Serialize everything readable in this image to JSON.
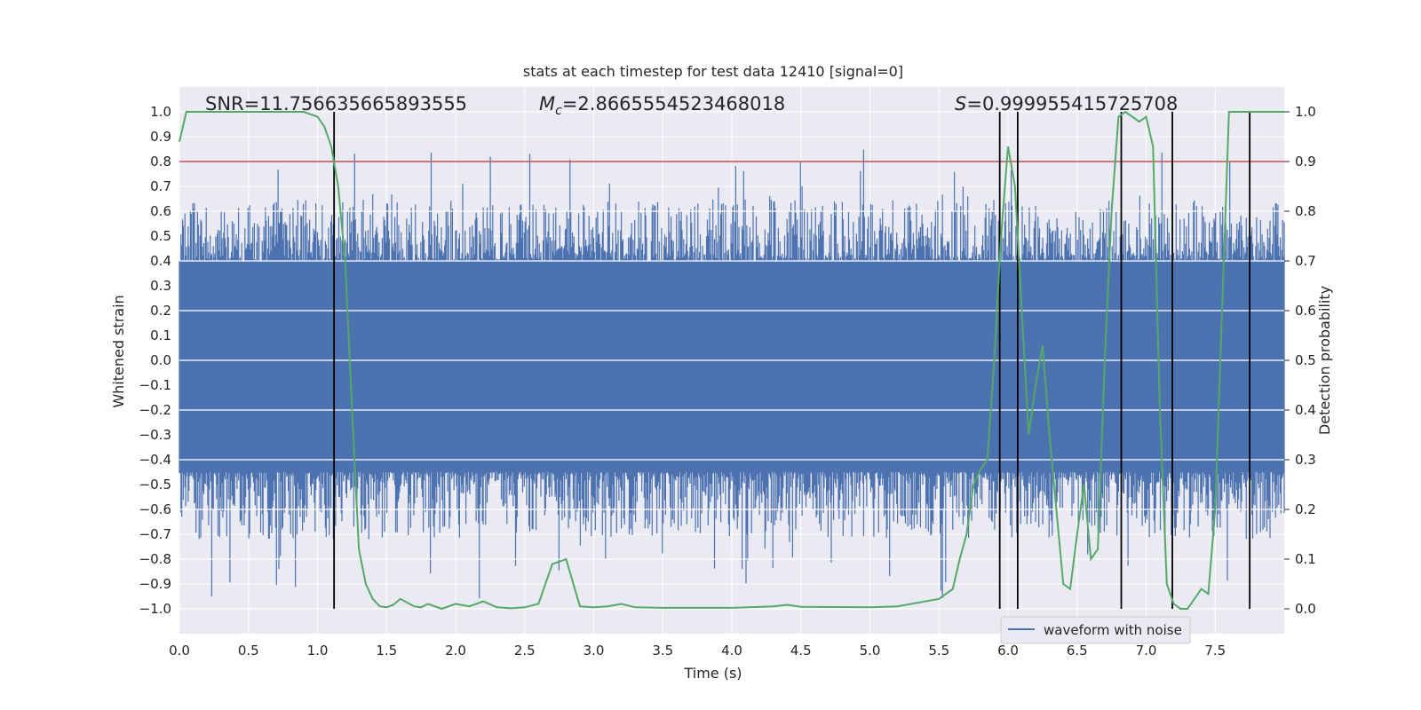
{
  "chart_data": {
    "type": "line",
    "title": "stats at each timestep for test data 12410 [signal=0]",
    "xlabel": "Time (s)",
    "ylabel": "Whitened strain",
    "ylabel_right": "Detection probability",
    "xlim": [
      0.0,
      8.0
    ],
    "ylim": [
      -1.1,
      1.1
    ],
    "ylim_right": [
      -0.05,
      1.05
    ],
    "x_ticks": [
      "0.0",
      "0.5",
      "1.0",
      "1.5",
      "2.0",
      "2.5",
      "3.0",
      "3.5",
      "4.0",
      "4.5",
      "5.0",
      "5.5",
      "6.0",
      "6.5",
      "7.0",
      "7.5"
    ],
    "y_ticks": [
      "1.0",
      "0.9",
      "0.8",
      "0.7",
      "0.6",
      "0.5",
      "0.4",
      "0.3",
      "0.2",
      "0.1",
      "0.0",
      "-0.1",
      "-0.2",
      "-0.3",
      "-0.4",
      "-0.5",
      "-0.6",
      "-0.7",
      "-0.8",
      "-0.9",
      "-1.0"
    ],
    "y_ticks_right": [
      "1.0",
      "0.9",
      "0.8",
      "0.7",
      "0.6",
      "0.5",
      "0.4",
      "0.3",
      "0.2",
      "0.1",
      "0.0"
    ],
    "annotations": {
      "snr": "SNR=11.756635665893555",
      "mc_symbol": "M",
      "mc_sub": "c",
      "mc_value": "=2.8665554523468018",
      "s_symbol": "S",
      "s_value": "=0.999955415725708"
    },
    "legend": {
      "label": "waveform with noise",
      "position": "lower-right"
    },
    "series": [
      {
        "name": "waveform with noise",
        "axis": "left",
        "color": "#4c72b0",
        "style": "dense noise, core amplitude ~0.4, spikes to ~0.85",
        "x_range": [
          0.0,
          8.0
        ],
        "core_amplitude": 0.4,
        "max_spike": 0.85
      },
      {
        "name": "detection probability",
        "axis": "right",
        "color": "#55a868",
        "x": [
          0.0,
          0.05,
          0.1,
          0.2,
          0.3,
          0.4,
          0.5,
          0.6,
          0.7,
          0.8,
          0.9,
          1.0,
          1.05,
          1.1,
          1.15,
          1.2,
          1.25,
          1.3,
          1.35,
          1.4,
          1.45,
          1.5,
          1.55,
          1.6,
          1.7,
          1.75,
          1.8,
          1.9,
          2.0,
          2.1,
          2.2,
          2.3,
          2.4,
          2.5,
          2.6,
          2.7,
          2.8,
          2.9,
          3.0,
          3.1,
          3.2,
          3.3,
          3.5,
          4.0,
          4.3,
          4.4,
          4.5,
          5.0,
          5.2,
          5.5,
          5.6,
          5.65,
          5.7,
          5.75,
          5.8,
          5.85,
          5.9,
          5.95,
          6.0,
          6.05,
          6.1,
          6.15,
          6.2,
          6.25,
          6.3,
          6.35,
          6.4,
          6.45,
          6.5,
          6.55,
          6.6,
          6.65,
          6.7,
          6.75,
          6.8,
          6.85,
          6.9,
          6.95,
          7.0,
          7.05,
          7.1,
          7.15,
          7.2,
          7.25,
          7.3,
          7.35,
          7.4,
          7.45,
          7.5,
          7.55,
          7.6,
          7.65,
          7.7,
          7.75,
          7.8,
          7.85,
          7.9,
          7.95,
          8.0
        ],
        "y": [
          0.94,
          1.0,
          1.0,
          1.0,
          1.0,
          1.0,
          1.0,
          1.0,
          1.0,
          1.0,
          1.0,
          0.99,
          0.97,
          0.93,
          0.85,
          0.7,
          0.4,
          0.12,
          0.05,
          0.02,
          0.005,
          0.003,
          0.008,
          0.02,
          0.005,
          0.003,
          0.01,
          0.0,
          0.01,
          0.005,
          0.015,
          0.003,
          0.001,
          0.003,
          0.01,
          0.09,
          0.1,
          0.005,
          0.003,
          0.005,
          0.01,
          0.003,
          0.002,
          0.002,
          0.005,
          0.008,
          0.004,
          0.003,
          0.005,
          0.02,
          0.04,
          0.1,
          0.15,
          0.25,
          0.28,
          0.3,
          0.5,
          0.75,
          0.93,
          0.85,
          0.6,
          0.35,
          0.45,
          0.53,
          0.35,
          0.2,
          0.05,
          0.04,
          0.15,
          0.25,
          0.1,
          0.12,
          0.5,
          0.8,
          0.99,
          1.0,
          0.99,
          0.98,
          0.99,
          0.93,
          0.4,
          0.05,
          0.01,
          0.0,
          0.0,
          0.02,
          0.04,
          0.03,
          0.2,
          0.6,
          1.0,
          1.0,
          1.0,
          1.0,
          1.0,
          1.0,
          1.0,
          1.0,
          1.0
        ]
      }
    ],
    "threshold": {
      "name": "detection threshold",
      "value": 0.9,
      "axis": "right",
      "color": "#c44e52"
    },
    "vertical_lines": {
      "x": [
        1.12,
        5.94,
        6.07,
        6.82,
        7.19,
        7.75
      ],
      "y_range_right": [
        0.0,
        1.0
      ],
      "color": "#000000"
    }
  }
}
